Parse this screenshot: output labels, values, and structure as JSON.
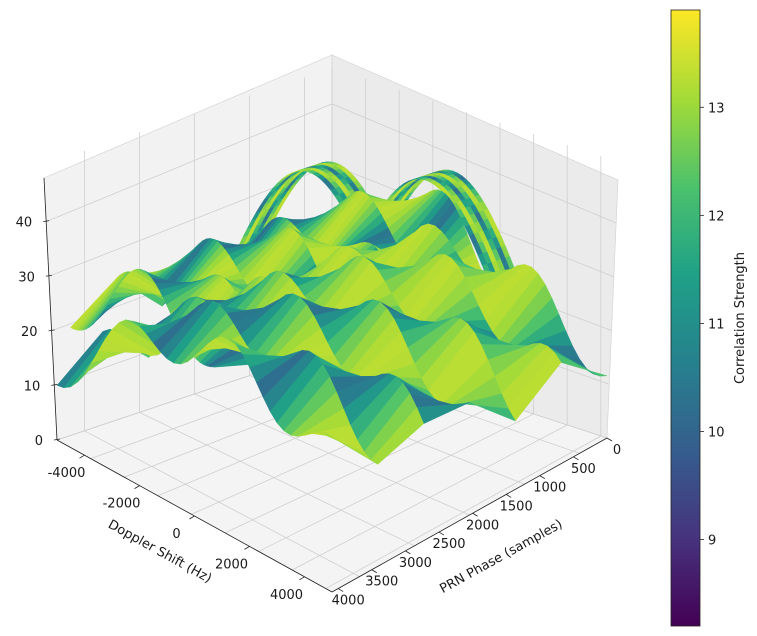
{
  "chart_data": {
    "type": "surface",
    "xlabel": "Doppler Shift (Hz)",
    "ylabel": "PRN Phase (samples)",
    "zlabel": "",
    "x_ticks": [
      "-4000",
      "-2000",
      "0",
      "2000",
      "4000"
    ],
    "y_ticks": [
      "0",
      "500",
      "1000",
      "1500",
      "2000",
      "2500",
      "3000",
      "3500",
      "4000"
    ],
    "z_ticks": [
      "0",
      "10",
      "20",
      "30",
      "40"
    ],
    "xlim": [
      -5000,
      5000
    ],
    "ylim": [
      0,
      4092
    ],
    "zlim": [
      0,
      48
    ],
    "colorbar": {
      "label": "Correlation Strength",
      "ticks": [
        "9",
        "10",
        "11",
        "12",
        "13"
      ],
      "range": [
        8.2,
        13.9
      ],
      "colormap": "viridis"
    },
    "grid": true,
    "surfaces": [
      {
        "name": "",
        "phase_range": [
          600,
          3200
        ],
        "doppler_range": [
          -500,
          500
        ],
        "peak": 46,
        "edge": 22
      },
      {
        "name": "",
        "phase_range": [
          1400,
          4000
        ],
        "doppler_range": [
          -2800,
          -1800
        ],
        "peak": 44,
        "edge": 20
      },
      {
        "name": "",
        "phase_range": [
          200,
          2400
        ],
        "doppler_range": [
          -5000,
          5000
        ],
        "peak": 30,
        "edge": 22
      },
      {
        "name": "",
        "phase_range": [
          0,
          4092
        ],
        "doppler_range": [
          -5000,
          5000
        ],
        "peak": 24,
        "edge": 12
      }
    ]
  }
}
